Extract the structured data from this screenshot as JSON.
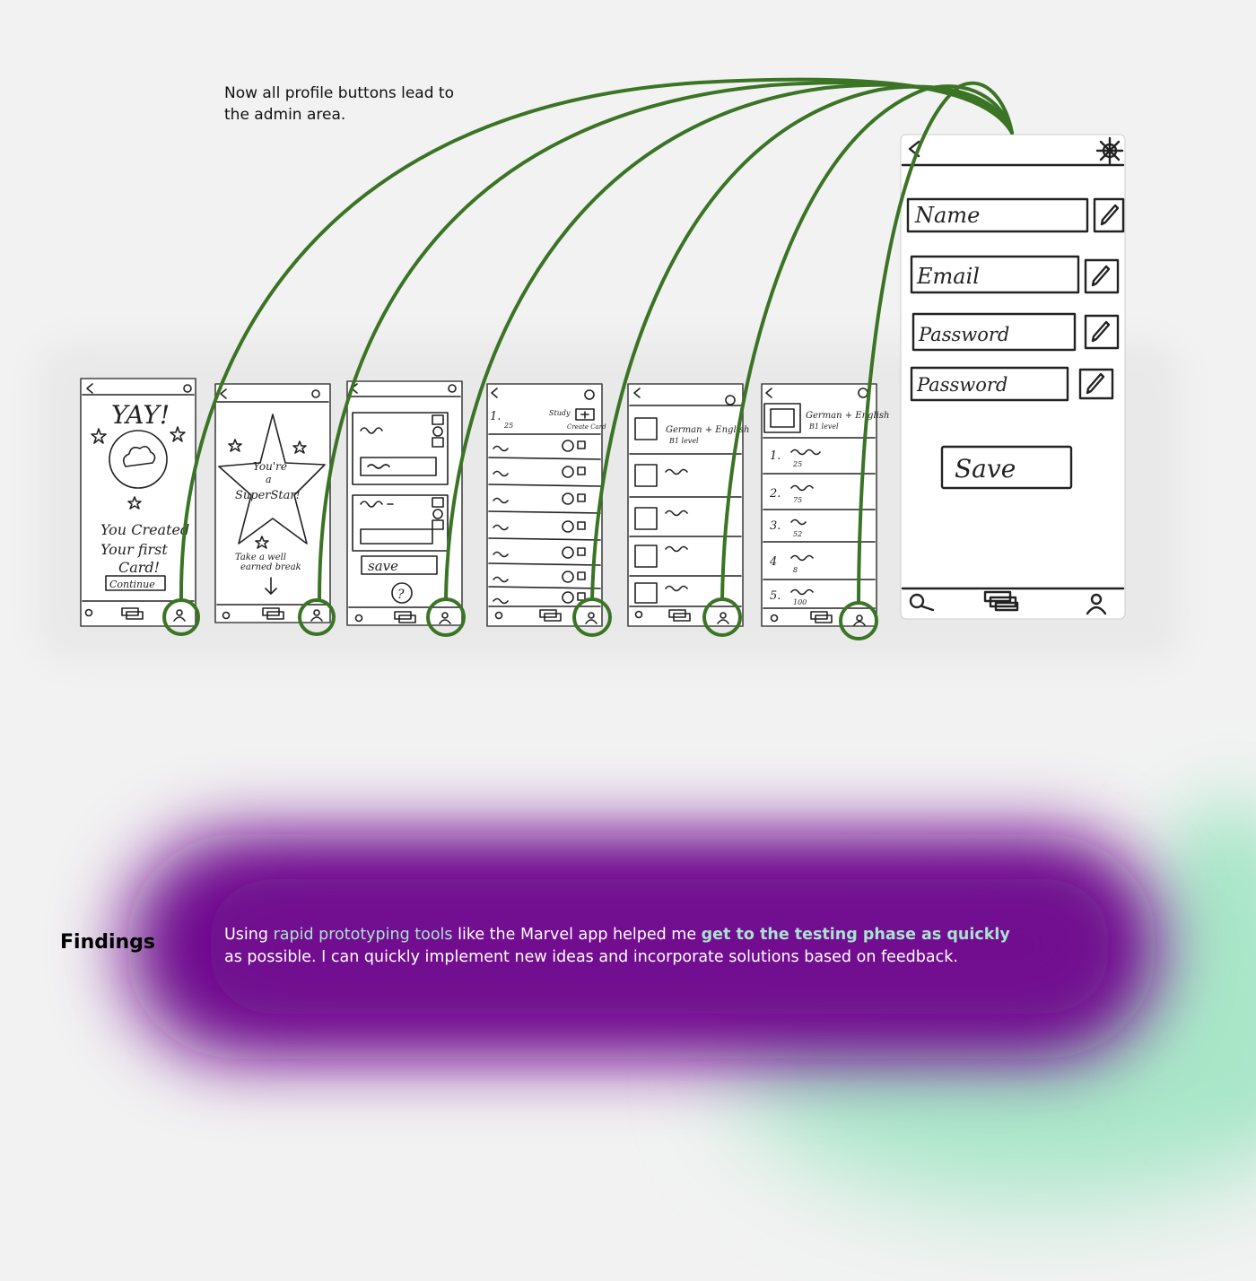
{
  "caption": {
    "line1": "Now all profile buttons lead to",
    "line2": "the admin area."
  },
  "findings": {
    "title": "Findings",
    "part1": "Using ",
    "highlight1": "rapid prototyping tools",
    "part2": " like the Marvel app helped me ",
    "highlight2": "get to the testing phase as quickly",
    "part3": "as possible. I can quickly implement new ideas and incorporate solutions based on feedback."
  },
  "screens": {
    "s1": {
      "title": "YAY!",
      "text1": "You Created",
      "text2": "Your first",
      "text3": "Card!",
      "button": "Continue"
    },
    "s2": {
      "line1": "You're",
      "line2": "a",
      "line3": "SuperStar!",
      "text1": "Take a well",
      "text2": "earned break"
    },
    "s3": {
      "button": "save",
      "help": "?"
    },
    "s4": {
      "header_num": "1.",
      "study": "Study",
      "create": "Create Card",
      "count": "25"
    },
    "s5": {
      "deck_title": "German + English",
      "deck_level": "B1 level"
    },
    "s6": {
      "deck_title": "German + English",
      "deck_level": "B1 level",
      "rows": [
        {
          "num": "1.",
          "count": "25"
        },
        {
          "num": "2.",
          "count": "75"
        },
        {
          "num": "3.",
          "count": "52"
        },
        {
          "num": "4",
          "count": "8"
        },
        {
          "num": "5.",
          "count": "100"
        }
      ]
    },
    "admin": {
      "name_label": "Name",
      "email_label": "Email",
      "password_label": "Password",
      "password2_label": "Password",
      "save": "Save"
    }
  },
  "colors": {
    "connector": "#3a7424",
    "purple": "#6a0a8a",
    "mint": "#a9e2cf"
  },
  "icons": [
    "back-arrow-icon",
    "gear-icon",
    "search-icon",
    "cards-icon",
    "profile-icon",
    "pencil-icon",
    "image-icon",
    "play-icon",
    "star-icon"
  ]
}
